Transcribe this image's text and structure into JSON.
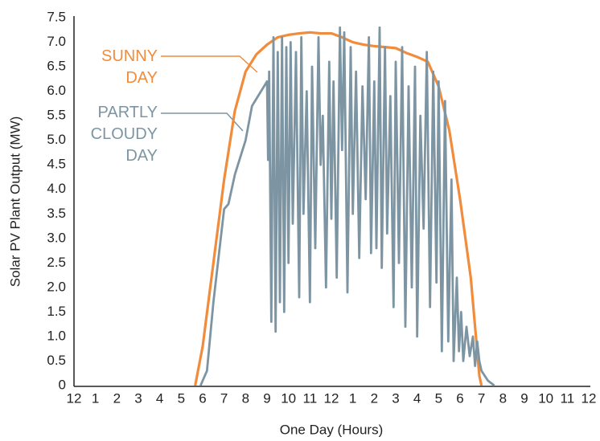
{
  "chart_data": {
    "type": "line",
    "xlabel": "One Day (Hours)",
    "ylabel": "Solar PV Plant Output (MW)",
    "xlim": [
      0,
      24
    ],
    "ylim": [
      0,
      7.5
    ],
    "xticks": [
      {
        "value": 0,
        "label": "12"
      },
      1,
      2,
      3,
      4,
      5,
      6,
      7,
      8,
      9,
      10,
      11,
      {
        "value": 12,
        "label": "12"
      },
      {
        "value": 13,
        "label": "1"
      },
      {
        "value": 14,
        "label": "2"
      },
      {
        "value": 15,
        "label": "3"
      },
      {
        "value": 16,
        "label": "4"
      },
      {
        "value": 17,
        "label": "5"
      },
      {
        "value": 18,
        "label": "6"
      },
      {
        "value": 19,
        "label": "7"
      },
      {
        "value": 20,
        "label": "8"
      },
      {
        "value": 21,
        "label": "9"
      },
      {
        "value": 22,
        "label": "10"
      },
      {
        "value": 23,
        "label": "11"
      },
      {
        "value": 24,
        "label": "12"
      }
    ],
    "yticks": [
      0,
      0.5,
      {
        "value": 1,
        "label": "1.0"
      },
      1.5,
      {
        "value": 2,
        "label": "2.0"
      },
      2.5,
      {
        "value": 3,
        "label": "3.0"
      },
      3.5,
      {
        "value": 4,
        "label": "4.0"
      },
      4.5,
      {
        "value": 5,
        "label": "5.0"
      },
      5.5,
      {
        "value": 6,
        "label": "6.0"
      },
      6.5,
      {
        "value": 7,
        "label": "7.0"
      },
      7.5
    ],
    "series": [
      {
        "name": "SUNNY DAY",
        "color": "#f08c3c",
        "x": [
          5.65,
          6,
          6.5,
          7,
          7.5,
          8,
          8.5,
          9,
          9.5,
          10,
          10.5,
          11,
          11.5,
          12,
          12.5,
          13,
          13.5,
          14,
          14.5,
          15,
          15.5,
          16,
          16.5,
          17,
          17.5,
          18,
          18.5,
          18.9,
          19
        ],
        "values": [
          0,
          0.8,
          2.5,
          4.2,
          5.6,
          6.4,
          6.75,
          6.95,
          7.1,
          7.15,
          7.18,
          7.2,
          7.18,
          7.18,
          7.1,
          7.0,
          6.95,
          6.92,
          6.9,
          6.88,
          6.78,
          6.7,
          6.6,
          6.1,
          5.2,
          3.8,
          2.2,
          0.2,
          0
        ]
      },
      {
        "name": "PARTLY CLOUDY DAY",
        "color": "#7d95a3",
        "x": [
          5.9,
          6.2,
          6.5,
          7.0,
          7.2,
          7.5,
          8.0,
          8.3,
          9.0,
          9.05,
          9.1,
          9.2,
          9.3,
          9.4,
          9.5,
          9.6,
          9.7,
          9.8,
          9.9,
          10.0,
          10.1,
          10.2,
          10.35,
          10.5,
          10.6,
          10.7,
          10.85,
          11.0,
          11.1,
          11.25,
          11.4,
          11.5,
          11.6,
          11.75,
          11.9,
          12.0,
          12.1,
          12.25,
          12.4,
          12.5,
          12.6,
          12.75,
          12.9,
          13.0,
          13.15,
          13.3,
          13.45,
          13.6,
          13.75,
          13.85,
          14.0,
          14.1,
          14.25,
          14.35,
          14.5,
          14.6,
          14.75,
          14.9,
          15.0,
          15.15,
          15.3,
          15.45,
          15.6,
          15.75,
          15.9,
          16.0,
          16.15,
          16.3,
          16.45,
          16.6,
          16.75,
          16.9,
          17.0,
          17.15,
          17.3,
          17.45,
          17.6,
          17.7,
          17.85,
          17.95,
          18.05,
          18.15,
          18.3,
          18.45,
          18.6,
          18.7,
          18.8,
          18.9,
          19.0,
          19.3,
          19.6
        ],
        "values": [
          0,
          0.3,
          1.7,
          3.6,
          3.7,
          4.3,
          5.0,
          5.7,
          6.2,
          4.6,
          6.4,
          1.3,
          7.1,
          1.1,
          6.8,
          1.7,
          7.1,
          1.5,
          6.9,
          2.5,
          7.0,
          3.3,
          6.8,
          1.8,
          7.1,
          3.5,
          6.0,
          1.7,
          6.5,
          2.8,
          7.1,
          4.5,
          5.5,
          2.0,
          6.6,
          3.4,
          6.2,
          2.2,
          7.3,
          4.8,
          7.2,
          1.9,
          6.9,
          3.5,
          6.4,
          2.6,
          6.1,
          3.8,
          7.1,
          2.7,
          6.2,
          2.8,
          7.3,
          2.4,
          6.9,
          3.1,
          5.9,
          1.6,
          6.6,
          2.5,
          6.9,
          1.2,
          6.1,
          2.0,
          6.5,
          1.0,
          5.5,
          3.2,
          6.8,
          1.6,
          6.4,
          2.1,
          6.2,
          0.7,
          5.8,
          0.9,
          4.2,
          0.5,
          2.2,
          0.7,
          1.5,
          0.5,
          1.2,
          0.6,
          1.0,
          0.4,
          0.9,
          0.5,
          0.3,
          0.1,
          0
        ]
      }
    ]
  }
}
